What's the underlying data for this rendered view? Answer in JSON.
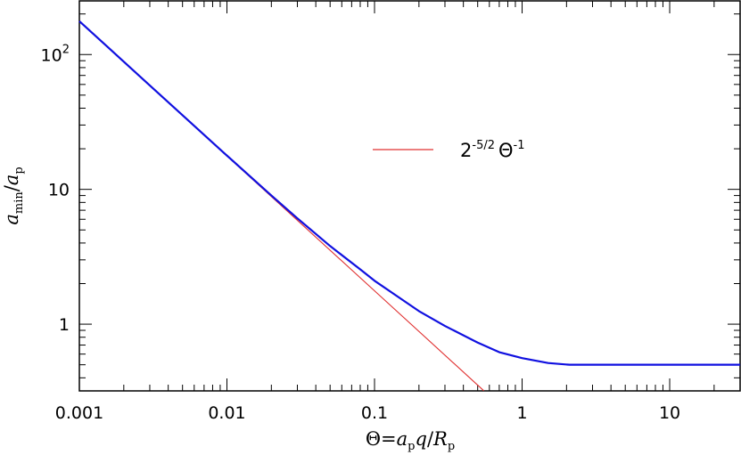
{
  "chart_data": {
    "type": "line",
    "title": "",
    "xlabel": "Θ=a_p q/R_p",
    "ylabel": "a_min/a_p",
    "x_scale": "log",
    "y_scale": "log",
    "xlim": [
      0.001,
      30
    ],
    "ylim": [
      0.32,
      250
    ],
    "grid": false,
    "x_ticks": [
      {
        "value": 0.001,
        "label": "0.001"
      },
      {
        "value": 0.01,
        "label": "0.01"
      },
      {
        "value": 0.1,
        "label": "0.1"
      },
      {
        "value": 1,
        "label": "1"
      },
      {
        "value": 10,
        "label": "10"
      }
    ],
    "y_ticks": [
      {
        "value": 1,
        "label": "1",
        "sup": ""
      },
      {
        "value": 10,
        "label": "10",
        "sup": ""
      },
      {
        "value": 100,
        "label": "10",
        "sup": "2"
      }
    ],
    "legend": {
      "position": "upper-right",
      "entries": [
        {
          "label": "2",
          "sup": "-5/2",
          "label2": "Θ",
          "sup2": "-1",
          "color": "#e03030"
        }
      ]
    },
    "series": [
      {
        "name": "2^-5/2 Θ^-1",
        "color": "#e03030",
        "x": [
          0.001,
          0.01,
          0.1,
          0.55
        ],
        "y": [
          176.8,
          17.68,
          1.768,
          0.321
        ]
      },
      {
        "color": "#1010e0",
        "x": [
          0.001,
          0.003,
          0.01,
          0.02,
          0.03,
          0.05,
          0.08,
          0.1,
          0.15,
          0.2,
          0.3,
          0.5,
          0.7,
          1.0,
          1.5,
          2.1,
          3,
          5,
          10,
          20,
          30
        ],
        "y": [
          176.8,
          59.0,
          17.8,
          9.0,
          6.1,
          3.8,
          2.55,
          2.1,
          1.55,
          1.25,
          0.97,
          0.73,
          0.62,
          0.56,
          0.515,
          0.5,
          0.5,
          0.5,
          0.5,
          0.5,
          0.5
        ]
      }
    ]
  }
}
